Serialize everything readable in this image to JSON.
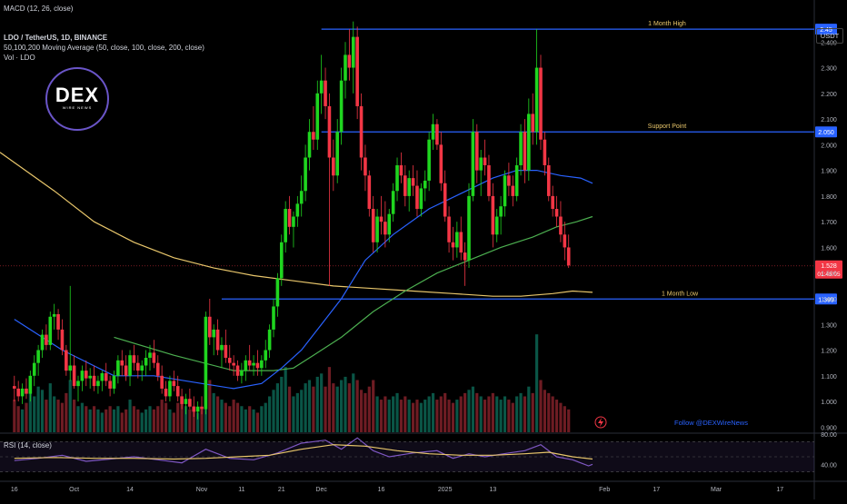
{
  "header": {
    "macd_label": "MACD (12, 26, close)",
    "symbol_line": "LDO / TetherUS, 1D, BINANCE",
    "ma_line": "50,100,200 Moving Average (50, close, 100, close, 200, close)",
    "vol_line": "Vol · LDO",
    "rsi_label": "RSI (14, close)",
    "quote_unit": "USDT"
  },
  "logo": {
    "text": "DEX",
    "subtext": "WIRE NEWS"
  },
  "follow_text": "Follow @DEXWireNews",
  "colors": {
    "up": "#089981",
    "up_bright": "#1fd51f",
    "down": "#f23645",
    "ma50": "#2962ff",
    "ma100": "#4caf50",
    "ma200": "#e8c66b",
    "level": "#2962ff",
    "rsi": "#7e57c2",
    "rsi_ma": "#e8c66b"
  },
  "chart_data": {
    "type": "candlestick",
    "title": "LDO / TetherUS, 1D, BINANCE",
    "ylim": [
      0.88,
      2.5
    ],
    "y_ticks": [
      "2.400",
      "2.300",
      "2.200",
      "2.100",
      "2.000",
      "1.900",
      "1.800",
      "1.700",
      "1.600",
      "1.500",
      "1.400",
      "1.300",
      "1.200",
      "1.100",
      "1.000",
      "0.900"
    ],
    "x_ticks": [
      "16",
      "Oct",
      "14",
      "Nov",
      "11",
      "21",
      "Dec",
      "16",
      "2025",
      "13",
      "Feb",
      "17",
      "Mar",
      "17"
    ],
    "x_tick_days": [
      0,
      15,
      29,
      47,
      57,
      67,
      77,
      92,
      108,
      120,
      148,
      161,
      176,
      192
    ],
    "x_range_days": [
      -3.6,
      200.6
    ],
    "levels": [
      {
        "label": "1 Month High",
        "value": 2.45,
        "badge": "2.45"
      },
      {
        "label": "Support Point",
        "value": 2.05,
        "badge": "2.050"
      },
      {
        "label": "1 Month Low",
        "value": 1.399,
        "badge": "1.399"
      }
    ],
    "current_price": {
      "value": 1.528,
      "label": "1.528",
      "countdown": "01:43:05"
    },
    "candles": [
      [
        1.06,
        1.1,
        1.0,
        1.05
      ],
      [
        1.05,
        1.08,
        1.0,
        1.02
      ],
      [
        1.02,
        1.07,
        0.99,
        1.05
      ],
      [
        1.05,
        1.09,
        1.01,
        1.03
      ],
      [
        1.03,
        1.12,
        1.0,
        1.1
      ],
      [
        1.1,
        1.18,
        1.06,
        1.15
      ],
      [
        1.15,
        1.22,
        1.1,
        1.2
      ],
      [
        1.2,
        1.28,
        1.17,
        1.26
      ],
      [
        1.26,
        1.3,
        1.2,
        1.22
      ],
      [
        1.22,
        1.35,
        1.2,
        1.33
      ],
      [
        1.33,
        1.38,
        1.28,
        1.34
      ],
      [
        1.34,
        1.36,
        1.24,
        1.28
      ],
      [
        1.28,
        1.32,
        1.18,
        1.2
      ],
      [
        1.2,
        1.22,
        1.1,
        1.12
      ],
      [
        1.12,
        1.45,
        1.08,
        1.14
      ],
      [
        1.14,
        1.18,
        1.05,
        1.06
      ],
      [
        1.06,
        1.1,
        1.0,
        1.08
      ],
      [
        1.08,
        1.14,
        1.04,
        1.12
      ],
      [
        1.12,
        1.16,
        1.06,
        1.09
      ],
      [
        1.09,
        1.13,
        1.05,
        1.1
      ],
      [
        1.1,
        1.14,
        1.04,
        1.06
      ],
      [
        1.06,
        1.1,
        1.03,
        1.08
      ],
      [
        1.08,
        1.12,
        1.04,
        1.11
      ],
      [
        1.11,
        1.15,
        1.06,
        1.08
      ],
      [
        1.08,
        1.1,
        1.02,
        1.05
      ],
      [
        1.05,
        1.12,
        1.03,
        1.1
      ],
      [
        1.1,
        1.18,
        1.07,
        1.16
      ],
      [
        1.16,
        1.2,
        1.1,
        1.14
      ],
      [
        1.14,
        1.18,
        1.08,
        1.1
      ],
      [
        1.1,
        1.2,
        1.06,
        1.18
      ],
      [
        1.18,
        1.22,
        1.12,
        1.15
      ],
      [
        1.15,
        1.18,
        1.09,
        1.12
      ],
      [
        1.12,
        1.16,
        1.08,
        1.14
      ],
      [
        1.14,
        1.2,
        1.1,
        1.17
      ],
      [
        1.17,
        1.22,
        1.12,
        1.19
      ],
      [
        1.19,
        1.24,
        1.13,
        1.15
      ],
      [
        1.15,
        1.18,
        1.08,
        1.1
      ],
      [
        1.1,
        1.14,
        1.03,
        1.05
      ],
      [
        1.05,
        1.08,
        1.0,
        1.02
      ],
      [
        1.02,
        1.1,
        1.0,
        1.08
      ],
      [
        1.08,
        1.12,
        1.04,
        1.06
      ],
      [
        1.06,
        1.1,
        1.0,
        1.02
      ],
      [
        1.02,
        1.05,
        0.97,
        0.99
      ],
      [
        0.99,
        1.03,
        0.95,
        1.01
      ],
      [
        1.01,
        1.05,
        0.97,
        0.98
      ],
      [
        0.98,
        1.02,
        0.94,
        0.96
      ],
      [
        0.96,
        1.0,
        0.93,
        0.98
      ],
      [
        0.98,
        1.02,
        0.95,
        0.97
      ],
      [
        0.97,
        1.35,
        0.95,
        1.33
      ],
      [
        1.33,
        1.4,
        1.22,
        1.25
      ],
      [
        1.25,
        1.3,
        1.18,
        1.28
      ],
      [
        1.28,
        1.32,
        1.18,
        1.2
      ],
      [
        1.2,
        1.25,
        1.13,
        1.22
      ],
      [
        1.22,
        1.28,
        1.15,
        1.17
      ],
      [
        1.17,
        1.22,
        1.12,
        1.15
      ],
      [
        1.15,
        1.18,
        1.1,
        1.14
      ],
      [
        1.14,
        1.16,
        1.08,
        1.1
      ],
      [
        1.1,
        1.15,
        1.07,
        1.12
      ],
      [
        1.12,
        1.18,
        1.08,
        1.16
      ],
      [
        1.16,
        1.22,
        1.12,
        1.14
      ],
      [
        1.14,
        1.18,
        1.1,
        1.15
      ],
      [
        1.15,
        1.2,
        1.1,
        1.13
      ],
      [
        1.13,
        1.18,
        1.1,
        1.16
      ],
      [
        1.16,
        1.24,
        1.13,
        1.2
      ],
      [
        1.2,
        1.3,
        1.17,
        1.28
      ],
      [
        1.28,
        1.4,
        1.25,
        1.37
      ],
      [
        1.37,
        1.5,
        1.33,
        1.48
      ],
      [
        1.48,
        1.65,
        1.45,
        1.62
      ],
      [
        1.62,
        1.78,
        1.58,
        1.75
      ],
      [
        1.75,
        1.8,
        1.65,
        1.68
      ],
      [
        1.68,
        1.74,
        1.6,
        1.72
      ],
      [
        1.72,
        1.8,
        1.68,
        1.77
      ],
      [
        1.77,
        1.88,
        1.72,
        1.82
      ],
      [
        1.82,
        2.0,
        1.78,
        1.95
      ],
      [
        1.95,
        2.1,
        1.9,
        2.05
      ],
      [
        2.05,
        2.15,
        1.98,
        2.02
      ],
      [
        2.02,
        2.25,
        1.98,
        2.2
      ],
      [
        2.2,
        2.35,
        2.12,
        2.25
      ],
      [
        2.25,
        2.3,
        2.1,
        2.15
      ],
      [
        2.15,
        2.2,
        1.45,
        1.95
      ],
      [
        1.95,
        2.02,
        1.82,
        1.88
      ],
      [
        1.88,
        2.1,
        1.85,
        2.05
      ],
      [
        2.05,
        2.3,
        2.0,
        2.25
      ],
      [
        2.25,
        2.4,
        2.18,
        2.35
      ],
      [
        2.35,
        2.45,
        2.25,
        2.3
      ],
      [
        2.3,
        2.48,
        2.2,
        2.42
      ],
      [
        2.42,
        2.46,
        2.1,
        2.15
      ],
      [
        2.15,
        2.2,
        1.9,
        1.95
      ],
      [
        1.95,
        2.0,
        1.82,
        1.88
      ],
      [
        1.88,
        1.9,
        1.72,
        1.75
      ],
      [
        1.75,
        1.8,
        1.58,
        1.62
      ],
      [
        1.62,
        1.75,
        1.58,
        1.72
      ],
      [
        1.72,
        1.8,
        1.65,
        1.7
      ],
      [
        1.7,
        1.78,
        1.6,
        1.65
      ],
      [
        1.65,
        1.75,
        1.62,
        1.73
      ],
      [
        1.73,
        1.85,
        1.7,
        1.82
      ],
      [
        1.82,
        1.95,
        1.78,
        1.92
      ],
      [
        1.92,
        1.97,
        1.85,
        1.88
      ],
      [
        1.88,
        1.92,
        1.76,
        1.8
      ],
      [
        1.8,
        1.9,
        1.74,
        1.87
      ],
      [
        1.87,
        1.92,
        1.8,
        1.84
      ],
      [
        1.84,
        1.9,
        1.72,
        1.75
      ],
      [
        1.75,
        1.85,
        1.72,
        1.83
      ],
      [
        1.83,
        1.9,
        1.78,
        1.86
      ],
      [
        1.86,
        2.05,
        1.82,
        2.02
      ],
      [
        2.02,
        2.12,
        1.98,
        2.08
      ],
      [
        2.08,
        2.1,
        1.98,
        2.0
      ],
      [
        2.0,
        2.05,
        1.82,
        1.85
      ],
      [
        1.85,
        1.9,
        1.7,
        1.72
      ],
      [
        1.72,
        1.76,
        1.58,
        1.62
      ],
      [
        1.62,
        1.68,
        1.55,
        1.6
      ],
      [
        1.6,
        1.7,
        1.56,
        1.66
      ],
      [
        1.66,
        1.72,
        1.55,
        1.58
      ],
      [
        1.58,
        1.62,
        1.45,
        1.55
      ],
      [
        1.55,
        1.85,
        1.52,
        1.8
      ],
      [
        1.8,
        2.1,
        1.78,
        2.05
      ],
      [
        2.05,
        2.08,
        1.85,
        1.9
      ],
      [
        1.9,
        1.98,
        1.8,
        1.95
      ],
      [
        1.95,
        2.02,
        1.88,
        1.92
      ],
      [
        1.92,
        1.96,
        1.78,
        1.8
      ],
      [
        1.8,
        1.85,
        1.6,
        1.65
      ],
      [
        1.65,
        1.75,
        1.62,
        1.72
      ],
      [
        1.72,
        1.8,
        1.65,
        1.76
      ],
      [
        1.76,
        1.9,
        1.72,
        1.88
      ],
      [
        1.88,
        1.93,
        1.8,
        1.84
      ],
      [
        1.84,
        1.88,
        1.76,
        1.8
      ],
      [
        1.8,
        1.95,
        1.78,
        1.92
      ],
      [
        1.92,
        2.08,
        1.88,
        2.05
      ],
      [
        2.05,
        2.1,
        1.85,
        1.9
      ],
      [
        1.9,
        2.18,
        1.86,
        2.12
      ],
      [
        2.12,
        2.2,
        2.0,
        2.05
      ],
      [
        2.05,
        2.45,
        2.0,
        2.3
      ],
      [
        2.3,
        2.35,
        1.98,
        2.02
      ],
      [
        2.02,
        2.05,
        1.88,
        1.92
      ],
      [
        1.92,
        1.95,
        1.78,
        1.8
      ],
      [
        1.8,
        1.84,
        1.72,
        1.75
      ],
      [
        1.75,
        1.8,
        1.68,
        1.72
      ],
      [
        1.72,
        1.78,
        1.62,
        1.65
      ],
      [
        1.65,
        1.7,
        1.55,
        1.6
      ],
      [
        1.6,
        1.65,
        1.52,
        1.53
      ]
    ],
    "volumes": [
      0.5,
      0.4,
      0.35,
      0.45,
      0.6,
      0.55,
      0.7,
      0.65,
      0.5,
      0.75,
      0.55,
      0.5,
      0.45,
      0.6,
      0.8,
      0.5,
      0.4,
      0.45,
      0.4,
      0.35,
      0.4,
      0.35,
      0.3,
      0.35,
      0.4,
      0.35,
      0.4,
      0.3,
      0.35,
      0.5,
      0.4,
      0.35,
      0.3,
      0.35,
      0.4,
      0.35,
      0.4,
      0.5,
      0.45,
      0.35,
      0.3,
      0.45,
      0.5,
      0.4,
      0.35,
      0.4,
      0.3,
      0.35,
      1.1,
      0.8,
      0.6,
      0.55,
      0.5,
      0.45,
      0.4,
      0.5,
      0.45,
      0.4,
      0.35,
      0.4,
      0.35,
      0.3,
      0.4,
      0.45,
      0.55,
      0.65,
      0.75,
      0.85,
      1.0,
      0.7,
      0.55,
      0.6,
      0.65,
      0.75,
      0.8,
      0.7,
      0.85,
      0.9,
      0.7,
      1.0,
      0.75,
      0.7,
      0.8,
      0.85,
      0.75,
      0.9,
      0.8,
      0.65,
      0.6,
      0.7,
      0.8,
      0.55,
      0.5,
      0.55,
      0.5,
      0.55,
      0.6,
      0.5,
      0.55,
      0.5,
      0.45,
      0.5,
      0.45,
      0.5,
      0.55,
      0.6,
      0.5,
      0.55,
      0.6,
      0.5,
      0.45,
      0.5,
      0.55,
      0.6,
      0.65,
      0.7,
      0.6,
      0.55,
      0.5,
      0.55,
      0.6,
      0.55,
      0.5,
      0.55,
      0.5,
      0.45,
      0.55,
      0.6,
      0.55,
      0.7,
      0.6,
      1.5,
      0.8,
      0.65,
      0.6,
      0.55,
      0.5,
      0.45,
      0.4,
      0.35
    ],
    "volume_ylim": [
      0,
      1.6
    ],
    "ma50": [
      [
        0,
        1.32
      ],
      [
        12,
        1.2
      ],
      [
        25,
        1.1
      ],
      [
        35,
        1.1
      ],
      [
        47,
        1.07
      ],
      [
        55,
        1.05
      ],
      [
        62,
        1.07
      ],
      [
        67,
        1.13
      ],
      [
        72,
        1.2
      ],
      [
        77,
        1.3
      ],
      [
        82,
        1.4
      ],
      [
        88,
        1.55
      ],
      [
        95,
        1.65
      ],
      [
        104,
        1.75
      ],
      [
        112,
        1.81
      ],
      [
        120,
        1.87
      ],
      [
        126,
        1.9
      ],
      [
        131,
        1.9
      ],
      [
        137,
        1.88
      ],
      [
        142,
        1.87
      ],
      [
        145,
        1.85
      ]
    ],
    "ma100": [
      [
        25,
        1.25
      ],
      [
        40,
        1.18
      ],
      [
        55,
        1.12
      ],
      [
        65,
        1.12
      ],
      [
        70,
        1.13
      ],
      [
        75,
        1.18
      ],
      [
        82,
        1.25
      ],
      [
        90,
        1.35
      ],
      [
        98,
        1.43
      ],
      [
        106,
        1.5
      ],
      [
        114,
        1.55
      ],
      [
        122,
        1.6
      ],
      [
        130,
        1.64
      ],
      [
        136,
        1.68
      ],
      [
        141,
        1.7
      ],
      [
        145,
        1.72
      ]
    ],
    "ma200": [
      [
        -3.6,
        1.97
      ],
      [
        10,
        1.82
      ],
      [
        20,
        1.7
      ],
      [
        30,
        1.62
      ],
      [
        40,
        1.56
      ],
      [
        50,
        1.52
      ],
      [
        60,
        1.49
      ],
      [
        70,
        1.47
      ],
      [
        80,
        1.45
      ],
      [
        90,
        1.44
      ],
      [
        100,
        1.43
      ],
      [
        110,
        1.42
      ],
      [
        120,
        1.41
      ],
      [
        127,
        1.41
      ],
      [
        135,
        1.42
      ],
      [
        140,
        1.43
      ],
      [
        145,
        1.425
      ]
    ],
    "rsi": {
      "ticks": [
        "80.00",
        "40.00"
      ],
      "ylim": [
        20,
        80
      ],
      "values": [
        [
          0,
          45
        ],
        [
          6,
          48
        ],
        [
          12,
          52
        ],
        [
          18,
          44
        ],
        [
          24,
          47
        ],
        [
          30,
          50
        ],
        [
          36,
          46
        ],
        [
          42,
          42
        ],
        [
          48,
          60
        ],
        [
          54,
          48
        ],
        [
          60,
          46
        ],
        [
          66,
          55
        ],
        [
          72,
          68
        ],
        [
          78,
          72
        ],
        [
          82,
          60
        ],
        [
          86,
          75
        ],
        [
          90,
          58
        ],
        [
          94,
          50
        ],
        [
          100,
          55
        ],
        [
          106,
          58
        ],
        [
          110,
          48
        ],
        [
          114,
          54
        ],
        [
          118,
          50
        ],
        [
          124,
          55
        ],
        [
          128,
          58
        ],
        [
          132,
          66
        ],
        [
          136,
          50
        ],
        [
          140,
          46
        ],
        [
          144,
          38
        ],
        [
          145,
          40
        ]
      ],
      "ma": [
        [
          0,
          48
        ],
        [
          10,
          49
        ],
        [
          20,
          48
        ],
        [
          30,
          48
        ],
        [
          40,
          47
        ],
        [
          48,
          48
        ],
        [
          56,
          50
        ],
        [
          64,
          52
        ],
        [
          72,
          60
        ],
        [
          80,
          66
        ],
        [
          88,
          64
        ],
        [
          96,
          58
        ],
        [
          104,
          54
        ],
        [
          112,
          52
        ],
        [
          120,
          52
        ],
        [
          128,
          54
        ],
        [
          134,
          56
        ],
        [
          140,
          50
        ],
        [
          145,
          47
        ]
      ]
    }
  }
}
